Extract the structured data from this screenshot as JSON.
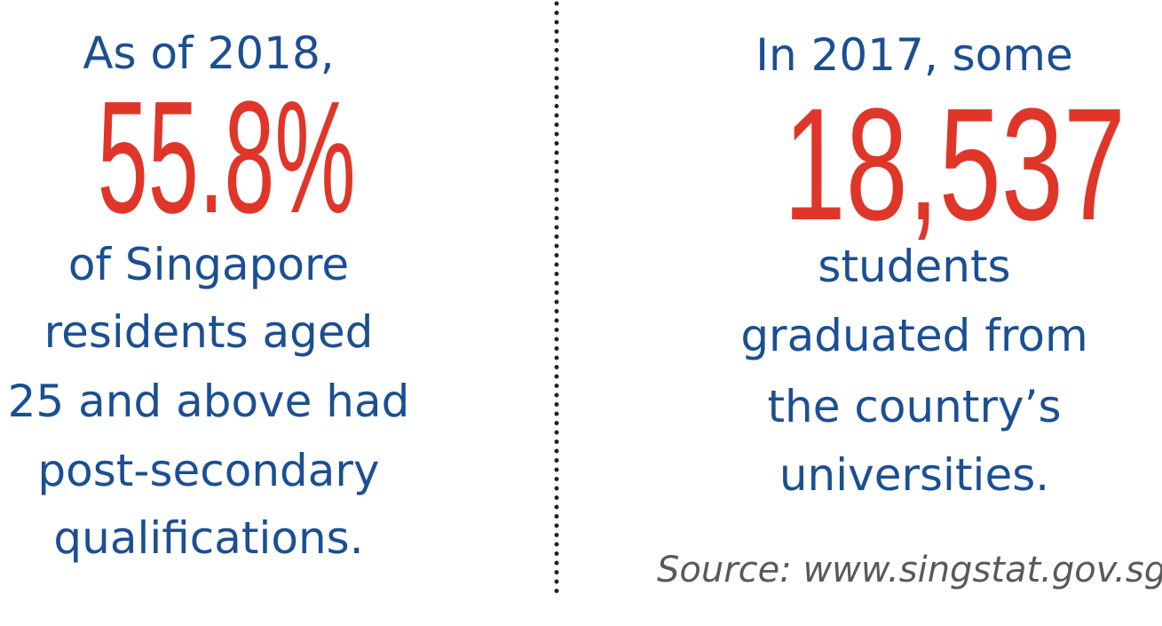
{
  "left": {
    "intro": "As of 2018,",
    "figure": "55.8%",
    "lines": [
      "of Singapore",
      "residents aged",
      "25 and above had",
      "post-secondary",
      "qualifications."
    ]
  },
  "right": {
    "intro": "In 2017, some",
    "figure": "18,537",
    "lines": [
      "students",
      "graduated from",
      "the country’s",
      "universities."
    ],
    "source": "Source: www.singstat.gov.sg"
  }
}
